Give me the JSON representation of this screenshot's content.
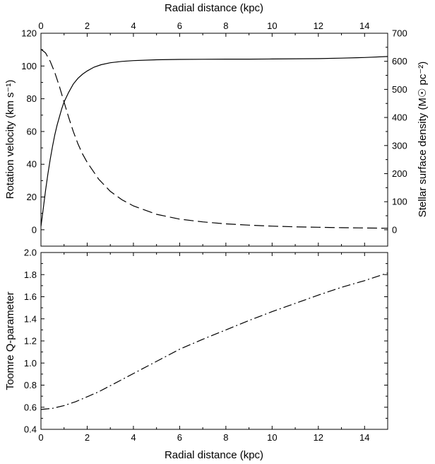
{
  "chart_data": [
    {
      "type": "line",
      "panel": "top",
      "xlabel": "Radial distance (kpc)",
      "x_axis_position": "top",
      "xlim": [
        0,
        15
      ],
      "xticks": [
        0,
        2,
        4,
        6,
        8,
        10,
        12,
        14
      ],
      "ylabel_left": "Rotation velocity (km s⁻¹)",
      "ylim_left": [
        -10,
        120
      ],
      "yticks_left": [
        0,
        20,
        40,
        60,
        80,
        100,
        120
      ],
      "ylabel_right": "Stellar surface density (M☉ pc⁻²)",
      "ylim_right": [
        -58.3,
        700
      ],
      "yticks_right": [
        0,
        100,
        200,
        300,
        400,
        500,
        600,
        700
      ],
      "grid": false,
      "series": [
        {
          "style": "solid",
          "axis": "left",
          "x": [
            0,
            0.1,
            0.2,
            0.3,
            0.4,
            0.5,
            0.6,
            0.7,
            0.8,
            0.9,
            1.0,
            1.2,
            1.4,
            1.6,
            1.8,
            2.0,
            2.3,
            2.6,
            3.0,
            3.5,
            4.0,
            5.0,
            6.0,
            7.0,
            8.0,
            9.0,
            10.0,
            11.0,
            12.0,
            13.0,
            14.0,
            15.0
          ],
          "y": [
            2,
            13,
            24,
            34,
            43,
            51,
            58,
            64,
            69,
            74,
            78,
            84,
            89,
            92.5,
            95,
            97,
            99.3,
            100.8,
            102,
            102.8,
            103.3,
            103.8,
            104,
            104.1,
            104.2,
            104.2,
            104.3,
            104.4,
            104.5,
            104.8,
            105.2,
            105.8
          ]
        },
        {
          "style": "dashed",
          "axis": "right",
          "x": [
            0,
            0.2,
            0.4,
            0.6,
            0.8,
            1.0,
            1.2,
            1.4,
            1.6,
            1.8,
            2.0,
            2.5,
            3.0,
            3.5,
            4.0,
            5.0,
            6.0,
            7.0,
            8.0,
            9.0,
            10.0,
            11.0,
            12.0,
            13.0,
            14.0,
            15.0
          ],
          "y": [
            643,
            630,
            600,
            560,
            510,
            455,
            400,
            350,
            306,
            270,
            240,
            180,
            137,
            107,
            85,
            55,
            38,
            28,
            21,
            16.5,
            13,
            10.5,
            9,
            7.5,
            6.5,
            5.5
          ]
        }
      ]
    },
    {
      "type": "line",
      "panel": "bottom",
      "xlabel": "Radial distance (kpc)",
      "x_axis_position": "bottom",
      "xlim": [
        0,
        15
      ],
      "xticks": [
        0,
        2,
        4,
        6,
        8,
        10,
        12,
        14
      ],
      "ylabel": "Toomre Q-parameter",
      "ylim": [
        0.4,
        2.0
      ],
      "yticks": [
        "0.4",
        "0.6",
        "0.8",
        "1.0",
        "1.2",
        "1.4",
        "1.6",
        "1.8",
        "2.0"
      ],
      "grid": false,
      "series": [
        {
          "style": "dash-dot",
          "x": [
            0,
            0.5,
            1.0,
            1.5,
            2.0,
            2.5,
            3.0,
            3.5,
            4.0,
            5.0,
            6.0,
            7.0,
            8.0,
            9.0,
            10.0,
            11.0,
            12.0,
            13.0,
            14.0,
            15.0
          ],
          "y": [
            0.58,
            0.59,
            0.615,
            0.65,
            0.695,
            0.74,
            0.795,
            0.85,
            0.905,
            1.015,
            1.125,
            1.215,
            1.3,
            1.385,
            1.465,
            1.54,
            1.615,
            1.685,
            1.745,
            1.815
          ]
        }
      ]
    }
  ]
}
